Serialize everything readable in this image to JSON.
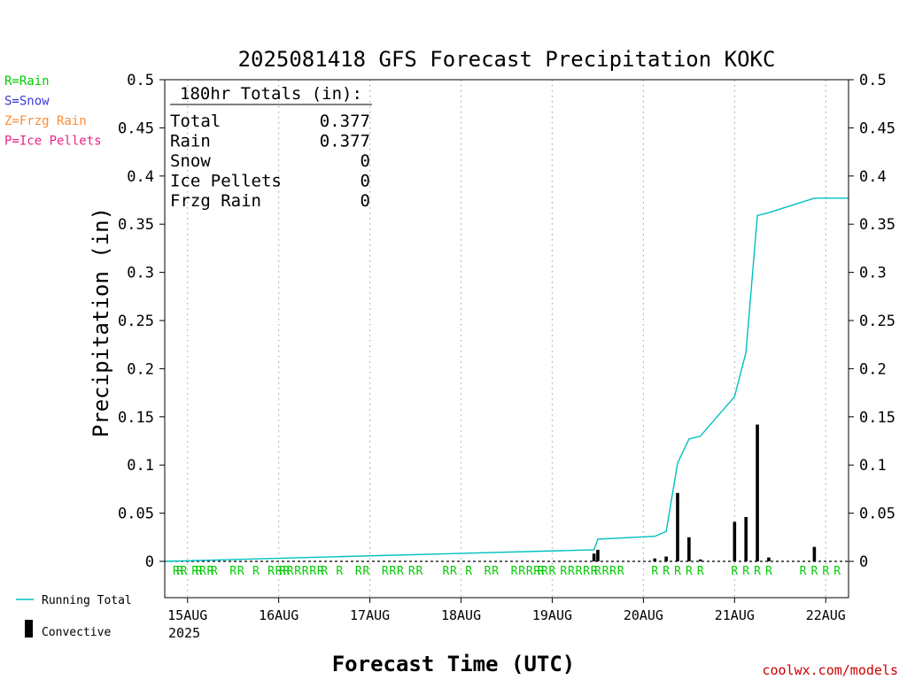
{
  "chart_data": {
    "type": "bar",
    "title": "2025081418 GFS Forecast Precipitation KOKC",
    "xlabel": "Forecast Time (UTC)",
    "ylabel": "Precipitation (in)",
    "ylim": [
      0,
      0.5
    ],
    "y_ticks": [
      0,
      0.05,
      0.1,
      0.15,
      0.2,
      0.25,
      0.3,
      0.35,
      0.4,
      0.45,
      0.5
    ],
    "y_tick_labels": [
      "0",
      "0.05",
      "0.1",
      "0.15",
      "0.2",
      "0.25",
      "0.3",
      "0.35",
      "0.4",
      "0.45",
      "0.5"
    ],
    "x_range": [
      "2025-08-14T18Z",
      "2025-08-22T06Z"
    ],
    "x_ticks": [
      {
        "label": "15AUG",
        "time": "2025-08-15T00Z"
      },
      {
        "label": "16AUG",
        "time": "2025-08-16T00Z"
      },
      {
        "label": "17AUG",
        "time": "2025-08-17T00Z"
      },
      {
        "label": "18AUG",
        "time": "2025-08-18T00Z"
      },
      {
        "label": "19AUG",
        "time": "2025-08-19T00Z"
      },
      {
        "label": "20AUG",
        "time": "2025-08-20T00Z"
      },
      {
        "label": "21AUG",
        "time": "2025-08-21T00Z"
      },
      {
        "label": "22AUG",
        "time": "2025-08-22T00Z"
      }
    ],
    "x_sublabel": "2025",
    "grid": "vertical dotted",
    "series": [
      {
        "name": "Convective",
        "color": "#000000",
        "style": "bar",
        "points": [
          {
            "time": "2025-08-19T11Z",
            "value": 0.008
          },
          {
            "time": "2025-08-19T12Z",
            "value": 0.012
          },
          {
            "time": "2025-08-20T03Z",
            "value": 0.003
          },
          {
            "time": "2025-08-20T06Z",
            "value": 0.005
          },
          {
            "time": "2025-08-20T09Z",
            "value": 0.071
          },
          {
            "time": "2025-08-20T12Z",
            "value": 0.025
          },
          {
            "time": "2025-08-20T15Z",
            "value": 0.002
          },
          {
            "time": "2025-08-21T00Z",
            "value": 0.041
          },
          {
            "time": "2025-08-21T03Z",
            "value": 0.046
          },
          {
            "time": "2025-08-21T06Z",
            "value": 0.142
          },
          {
            "time": "2025-08-21T09Z",
            "value": 0.004
          },
          {
            "time": "2025-08-21T21Z",
            "value": 0.015
          }
        ]
      },
      {
        "name": "Running Total",
        "color": "#00c0c0",
        "style": "step-line",
        "points": [
          {
            "time": "2025-08-14T18Z",
            "value": 0
          },
          {
            "time": "2025-08-19T11Z",
            "value": 0.012
          },
          {
            "time": "2025-08-19T12Z",
            "value": 0.023
          },
          {
            "time": "2025-08-20T03Z",
            "value": 0.026
          },
          {
            "time": "2025-08-20T06Z",
            "value": 0.031
          },
          {
            "time": "2025-08-20T09Z",
            "value": 0.102
          },
          {
            "time": "2025-08-20T12Z",
            "value": 0.127
          },
          {
            "time": "2025-08-20T15Z",
            "value": 0.13
          },
          {
            "time": "2025-08-21T00Z",
            "value": 0.171
          },
          {
            "time": "2025-08-21T03Z",
            "value": 0.217
          },
          {
            "time": "2025-08-21T06Z",
            "value": 0.359
          },
          {
            "time": "2025-08-21T09Z",
            "value": 0.362
          },
          {
            "time": "2025-08-21T21Z",
            "value": 0.377
          },
          {
            "time": "2025-08-22T06Z",
            "value": 0.377
          }
        ]
      }
    ],
    "ptype_color": "#00cc00",
    "ptype_marks": [
      {
        "time": "2025-08-14T21Z",
        "symbol": "R"
      },
      {
        "time": "2025-08-14T22Z",
        "symbol": "R"
      },
      {
        "time": "2025-08-14T23Z",
        "symbol": "R"
      },
      {
        "time": "2025-08-15T02Z",
        "symbol": "R"
      },
      {
        "time": "2025-08-15T03Z",
        "symbol": "R"
      },
      {
        "time": "2025-08-15T04Z",
        "symbol": "R"
      },
      {
        "time": "2025-08-15T06Z",
        "symbol": "R"
      },
      {
        "time": "2025-08-15T07Z",
        "symbol": "R"
      },
      {
        "time": "2025-08-15T12Z",
        "symbol": "R"
      },
      {
        "time": "2025-08-15T14Z",
        "symbol": "R"
      },
      {
        "time": "2025-08-15T18Z",
        "symbol": "R"
      },
      {
        "time": "2025-08-15T22Z",
        "symbol": "R"
      },
      {
        "time": "2025-08-16T00Z",
        "symbol": "R"
      },
      {
        "time": "2025-08-16T01Z",
        "symbol": "R"
      },
      {
        "time": "2025-08-16T02Z",
        "symbol": "R"
      },
      {
        "time": "2025-08-16T03Z",
        "symbol": "R"
      },
      {
        "time": "2025-08-16T05Z",
        "symbol": "R"
      },
      {
        "time": "2025-08-16T07Z",
        "symbol": "R"
      },
      {
        "time": "2025-08-16T09Z",
        "symbol": "R"
      },
      {
        "time": "2025-08-16T11Z",
        "symbol": "R"
      },
      {
        "time": "2025-08-16T12Z",
        "symbol": "R"
      },
      {
        "time": "2025-08-16T16Z",
        "symbol": "R"
      },
      {
        "time": "2025-08-16T21Z",
        "symbol": "R"
      },
      {
        "time": "2025-08-16T23Z",
        "symbol": "R"
      },
      {
        "time": "2025-08-17T04Z",
        "symbol": "R"
      },
      {
        "time": "2025-08-17T06Z",
        "symbol": "R"
      },
      {
        "time": "2025-08-17T08Z",
        "symbol": "R"
      },
      {
        "time": "2025-08-17T11Z",
        "symbol": "R"
      },
      {
        "time": "2025-08-17T13Z",
        "symbol": "R"
      },
      {
        "time": "2025-08-17T20Z",
        "symbol": "R"
      },
      {
        "time": "2025-08-17T22Z",
        "symbol": "R"
      },
      {
        "time": "2025-08-18T02Z",
        "symbol": "R"
      },
      {
        "time": "2025-08-18T07Z",
        "symbol": "R"
      },
      {
        "time": "2025-08-18T09Z",
        "symbol": "R"
      },
      {
        "time": "2025-08-18T14Z",
        "symbol": "R"
      },
      {
        "time": "2025-08-18T16Z",
        "symbol": "R"
      },
      {
        "time": "2025-08-18T18Z",
        "symbol": "R"
      },
      {
        "time": "2025-08-18T20Z",
        "symbol": "R"
      },
      {
        "time": "2025-08-18T21Z",
        "symbol": "R"
      },
      {
        "time": "2025-08-18T22Z",
        "symbol": "R"
      },
      {
        "time": "2025-08-19T00Z",
        "symbol": "R"
      },
      {
        "time": "2025-08-19T03Z",
        "symbol": "R"
      },
      {
        "time": "2025-08-19T05Z",
        "symbol": "R"
      },
      {
        "time": "2025-08-19T07Z",
        "symbol": "R"
      },
      {
        "time": "2025-08-19T09Z",
        "symbol": "R"
      },
      {
        "time": "2025-08-19T11Z",
        "symbol": "R"
      },
      {
        "time": "2025-08-19T12Z",
        "symbol": "R"
      },
      {
        "time": "2025-08-19T14Z",
        "symbol": "R"
      },
      {
        "time": "2025-08-19T16Z",
        "symbol": "R"
      },
      {
        "time": "2025-08-19T18Z",
        "symbol": "R"
      },
      {
        "time": "2025-08-20T03Z",
        "symbol": "R"
      },
      {
        "time": "2025-08-20T06Z",
        "symbol": "R"
      },
      {
        "time": "2025-08-20T09Z",
        "symbol": "R"
      },
      {
        "time": "2025-08-20T12Z",
        "symbol": "R"
      },
      {
        "time": "2025-08-20T15Z",
        "symbol": "R"
      },
      {
        "time": "2025-08-21T00Z",
        "symbol": "R"
      },
      {
        "time": "2025-08-21T03Z",
        "symbol": "R"
      },
      {
        "time": "2025-08-21T06Z",
        "symbol": "R"
      },
      {
        "time": "2025-08-21T09Z",
        "symbol": "R"
      },
      {
        "time": "2025-08-21T18Z",
        "symbol": "R"
      },
      {
        "time": "2025-08-21T21Z",
        "symbol": "R"
      },
      {
        "time": "2025-08-22T00Z",
        "symbol": "R"
      },
      {
        "time": "2025-08-22T03Z",
        "symbol": "R"
      }
    ],
    "totals": {
      "header": "180hr Totals (in):",
      "rows": [
        {
          "label": "Total",
          "value": "0.377"
        },
        {
          "label": "Rain",
          "value": "0.377"
        },
        {
          "label": "Snow",
          "value": "0"
        },
        {
          "label": "Ice Pellets",
          "value": "0"
        },
        {
          "label": "Frzg Rain",
          "value": "0"
        }
      ]
    },
    "ptype_legend": [
      {
        "text": "R=Rain",
        "color": "#00cc00"
      },
      {
        "text": "S=Snow",
        "color": "#3a3ad8"
      },
      {
        "text": "Z=Frzg Rain",
        "color": "#ff8c33"
      },
      {
        "text": "P=Ice Pellets",
        "color": "#ee2288"
      }
    ],
    "series_legend": [
      {
        "text": "Running Total",
        "kind": "line",
        "color": "#00c0c0"
      },
      {
        "text": "Convective",
        "kind": "bar",
        "color": "#000000"
      }
    ],
    "credit": "coolwx.com/models",
    "credit_color": "#cc0000",
    "legend_position": "left"
  }
}
